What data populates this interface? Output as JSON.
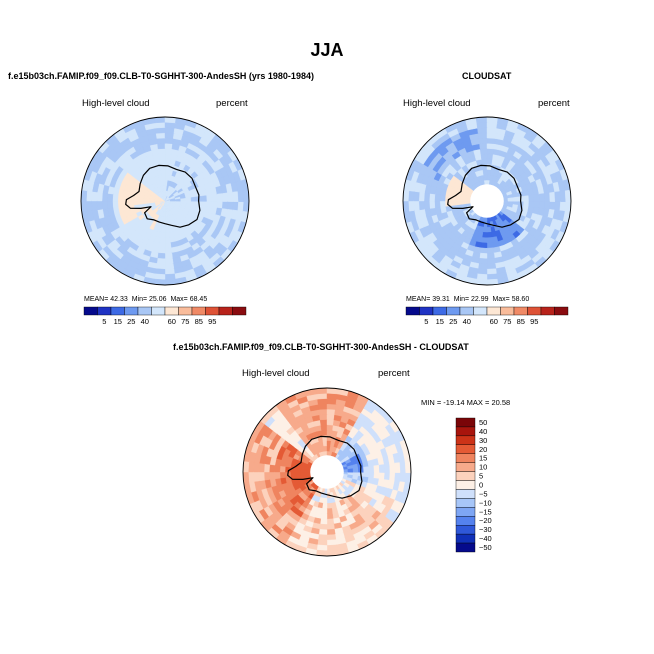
{
  "figure": {
    "title": "JJA"
  },
  "colors": {
    "abs_scale": [
      "#050a8c",
      "#1f33c4",
      "#3d6ae5",
      "#6e9af0",
      "#a9c7f5",
      "#d3e6fb",
      "#fde7d4",
      "#f9bc9b",
      "#f08a66",
      "#de5236",
      "#b8231b",
      "#8a0c10"
    ],
    "diff_scale": [
      "#050a8c",
      "#1030b8",
      "#2f58d9",
      "#5582ee",
      "#7ea6f4",
      "#a7c6f8",
      "#cfe0fb",
      "#fdf0e6",
      "#fcd2bd",
      "#f7aa8b",
      "#ef845f",
      "#e45a35",
      "#cc3318",
      "#a8150d",
      "#7a0508"
    ],
    "continent_line": "#000000",
    "circle_line": "#000000"
  },
  "chart_data": [
    {
      "type": "heatmap",
      "panel": "model",
      "title": "f.e15b03ch.FAMIP.f09_f09.CLB-T0-SGHHT-300-AndesSH (yrs 1980-1984)",
      "left_label": "High-level cloud",
      "right_label": "percent",
      "mean_label": "MEAN=",
      "mean": "42.33",
      "min_label": "Min=",
      "min": "25.06",
      "max_label": "Max=",
      "max": "68.45",
      "colorbar_ticks": [
        "5",
        "15",
        "25",
        "40",
        "60",
        "75",
        "85",
        "95"
      ],
      "projection": "south-polar-stereographic",
      "has_missing_pole": false
    },
    {
      "type": "heatmap",
      "panel": "obs",
      "title": "CLOUDSAT",
      "left_label": "High-level cloud",
      "right_label": "percent",
      "mean_label": "MEAN=",
      "mean": "39.31",
      "min_label": "Min=",
      "min": "22.99",
      "max_label": "Max=",
      "max": "58.60",
      "colorbar_ticks": [
        "5",
        "15",
        "25",
        "40",
        "60",
        "75",
        "85",
        "95"
      ],
      "projection": "south-polar-stereographic",
      "has_missing_pole": true
    },
    {
      "type": "heatmap",
      "panel": "difference",
      "title": "f.e15b03ch.FAMIP.f09_f09.CLB-T0-SGHHT-300-AndesSH - CLOUDSAT",
      "left_label": "High-level cloud",
      "right_label": "percent",
      "minmax_text": "MIN = -19.14 MAX =  20.58",
      "colorbar_ticks": [
        "50",
        "40",
        "30",
        "20",
        "15",
        "10",
        "5",
        "0",
        "−5",
        "−10",
        "−15",
        "−20",
        "−30",
        "−40",
        "−50"
      ],
      "projection": "south-polar-stereographic",
      "has_missing_pole": true
    }
  ]
}
